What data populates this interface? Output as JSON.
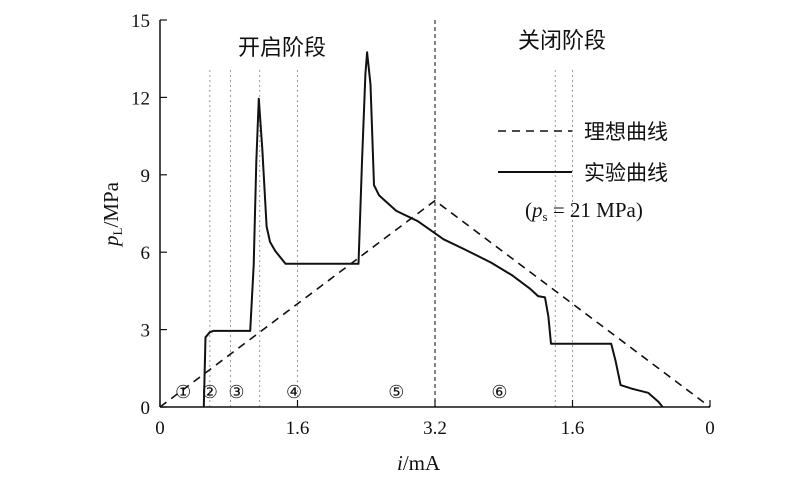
{
  "chart_data": {
    "type": "line",
    "xlabel_var": "i",
    "xlabel_unit": "/mA",
    "ylabel_var": "p",
    "ylabel_sub": "L",
    "ylabel_unit": "/MPa",
    "x_tick_labels": [
      "0",
      "1.6",
      "3.2",
      "1.6",
      "0"
    ],
    "y_ticks": [
      0,
      3,
      6,
      9,
      12,
      15
    ],
    "ylim": [
      0,
      15
    ],
    "phases": [
      {
        "name": "开启阶段",
        "from": "0",
        "to": "3.2"
      },
      {
        "name": "关闭阶段",
        "from": "3.2",
        "to": "0"
      }
    ],
    "stage_labels": [
      "①",
      "②",
      "③",
      "④",
      "⑤",
      "⑥"
    ],
    "legend": {
      "position": "right",
      "ideal": "理想曲线",
      "experiment": "实验曲线",
      "note_var": "p",
      "note_sub": "s",
      "note_rest": " = 21 MPa"
    },
    "series": [
      {
        "name": "理想曲线",
        "style": "dashed",
        "points": [
          [
            0,
            0
          ],
          [
            3.2,
            8
          ],
          [
            6.4,
            0
          ]
        ]
      },
      {
        "name": "实验曲线",
        "style": "solid",
        "points": [
          [
            0.51,
            0
          ],
          [
            0.53,
            2.7
          ],
          [
            0.58,
            2.9
          ],
          [
            0.62,
            2.95
          ],
          [
            1.0,
            2.95
          ],
          [
            1.05,
            2.95
          ],
          [
            1.09,
            5.5
          ],
          [
            1.12,
            9.5
          ],
          [
            1.15,
            11.95
          ],
          [
            1.19,
            10.0
          ],
          [
            1.24,
            7.0
          ],
          [
            1.28,
            6.4
          ],
          [
            1.34,
            6.05
          ],
          [
            1.46,
            5.55
          ],
          [
            2.2,
            5.55
          ],
          [
            2.31,
            5.55
          ],
          [
            2.35,
            9.5
          ],
          [
            2.39,
            12.9
          ],
          [
            2.41,
            13.75
          ],
          [
            2.45,
            12.5
          ],
          [
            2.49,
            8.6
          ],
          [
            2.55,
            8.2
          ],
          [
            2.75,
            7.6
          ],
          [
            3.0,
            7.2
          ],
          [
            3.3,
            6.5
          ],
          [
            3.55,
            6.1
          ],
          [
            3.85,
            5.6
          ],
          [
            4.1,
            5.1
          ],
          [
            4.3,
            4.6
          ],
          [
            4.4,
            4.3
          ],
          [
            4.48,
            4.25
          ],
          [
            4.52,
            3.5
          ],
          [
            4.55,
            2.45
          ],
          [
            4.95,
            2.45
          ],
          [
            5.25,
            2.45
          ],
          [
            5.3,
            1.8
          ],
          [
            5.36,
            0.85
          ],
          [
            5.5,
            0.7
          ],
          [
            5.68,
            0.55
          ],
          [
            5.8,
            0.2
          ],
          [
            5.85,
            0
          ]
        ]
      }
    ],
    "guide_lines_x": [
      0.58,
      0.82,
      1.16,
      1.6,
      3.2,
      4.6,
      4.8
    ],
    "stage_label_x": [
      0.27,
      0.58,
      0.89,
      1.56,
      2.75,
      3.95
    ]
  }
}
